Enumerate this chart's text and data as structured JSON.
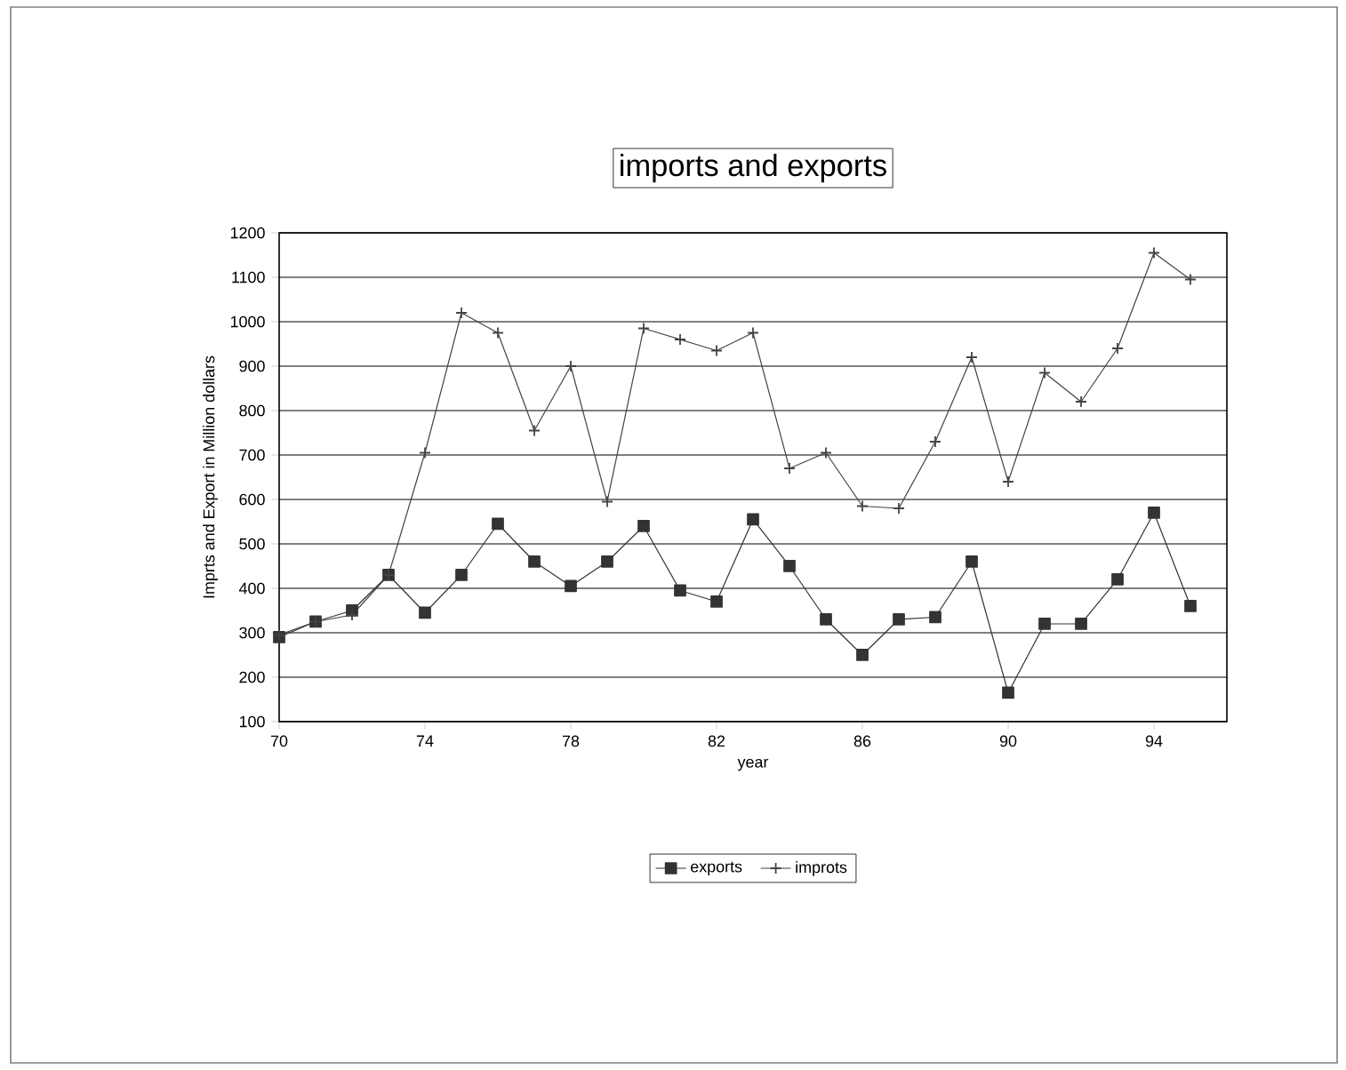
{
  "chart_data": {
    "type": "line",
    "title": "imports and exports",
    "xlabel": "year",
    "ylabel": "Imprts and Export in Million dollars",
    "x": [
      70,
      71,
      72,
      73,
      74,
      75,
      76,
      77,
      78,
      79,
      80,
      81,
      82,
      83,
      84,
      85,
      86,
      87,
      88,
      89,
      90,
      91,
      92,
      93,
      94,
      95
    ],
    "series": [
      {
        "name": "exports",
        "color": "#333333",
        "marker": "square",
        "values": [
          290,
          325,
          350,
          430,
          345,
          430,
          545,
          460,
          405,
          460,
          540,
          395,
          370,
          555,
          450,
          330,
          250,
          330,
          335,
          460,
          165,
          320,
          320,
          420,
          570,
          360
        ]
      },
      {
        "name": "improts",
        "color": "#444444",
        "marker": "cross",
        "values": [
          295,
          325,
          340,
          430,
          705,
          1020,
          975,
          755,
          900,
          595,
          985,
          960,
          935,
          975,
          670,
          705,
          585,
          580,
          730,
          920,
          640,
          885,
          820,
          940,
          1155,
          1095
        ]
      }
    ],
    "xlim": [
      70,
      96
    ],
    "xticks": [
      70,
      74,
      78,
      82,
      86,
      90,
      94
    ],
    "ylim": [
      100,
      1200
    ],
    "yticks": [
      100,
      200,
      300,
      400,
      500,
      600,
      700,
      800,
      900,
      1000,
      1100,
      1200
    ],
    "grid": "y",
    "legend": "bottom",
    "line_style": "solid"
  }
}
